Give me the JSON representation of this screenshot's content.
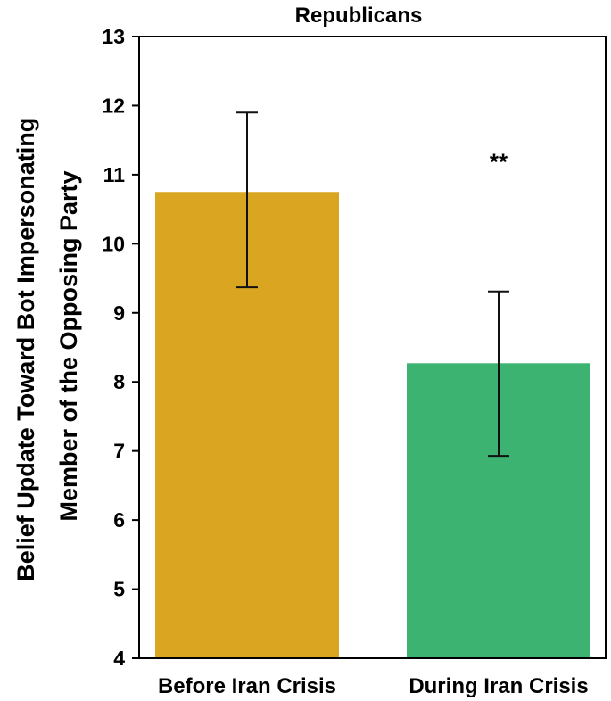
{
  "chart_data": {
    "type": "bar",
    "title": "Republicans",
    "xlabel": "",
    "ylabel": "Belief Update Toward Bot Impersonating Member of the Opposing Party",
    "ylabel_lines": [
      "Belief Update Toward Bot Impersonating",
      "Member of the Opposing Party"
    ],
    "categories": [
      "Before Iran Crisis",
      "During Iran Crisis"
    ],
    "values": [
      10.75,
      8.27
    ],
    "error_low": [
      9.37,
      6.93
    ],
    "error_high": [
      11.9,
      9.31
    ],
    "colors": [
      "#DAA520",
      "#3CB371"
    ],
    "ylim": [
      4,
      13
    ],
    "yticks": [
      "4",
      "5",
      "6",
      "7",
      "8",
      "9",
      "10",
      "11",
      "12",
      "13"
    ],
    "annotations": [
      {
        "text": "**",
        "category": "During Iran Crisis",
        "y": 11.2
      }
    ],
    "grid": false,
    "legend": "none"
  }
}
